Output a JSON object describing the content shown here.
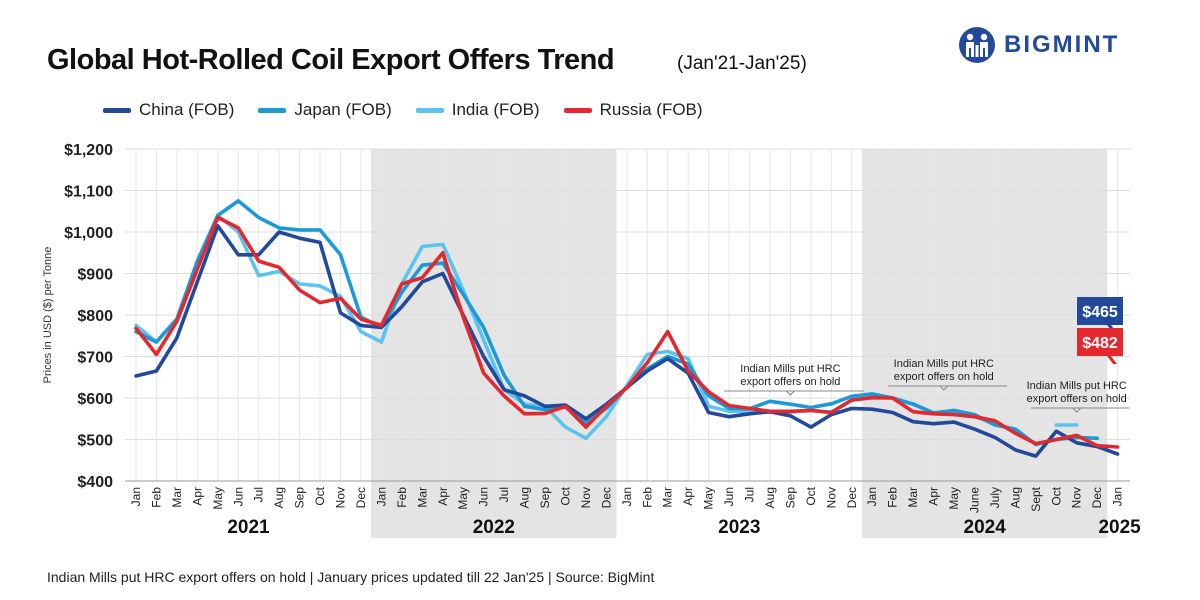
{
  "header": {
    "title": "Global Hot-Rolled Coil Export Offers Trend",
    "subtitle": "(Jan'21-Jan'25)",
    "brand": "BIGMINT"
  },
  "footer": {
    "note": "Indian Mills put HRC export offers on hold  |  January prices updated till 22 Jan'25  |  Source: BigMint"
  },
  "colors": {
    "china": "#234a9a",
    "japan": "#1a9ad6",
    "india": "#5cc3ef",
    "russia": "#e5282e",
    "shade": "#e4e4e4"
  },
  "chart_data": {
    "type": "line",
    "title": "Global Hot-Rolled Coil Export Offers Trend",
    "ylabel": "Prices in USD ($) per Tonne",
    "ylim": [
      400,
      1200
    ],
    "yticks": [
      400,
      500,
      600,
      700,
      800,
      900,
      1000,
      1100,
      1200
    ],
    "ytick_labels": [
      "$400",
      "$500",
      "$600",
      "$700",
      "$800",
      "$900",
      "$1,000",
      "$1,100",
      "$1,200"
    ],
    "grid": true,
    "legend_position": "top-left",
    "categories": [
      "Jan",
      "Feb",
      "Mar",
      "Apr",
      "May",
      "Jun",
      "Jul",
      "Aug",
      "Sep",
      "Oct",
      "Nov",
      "Dec",
      "Jan",
      "Feb",
      "Mar",
      "Apr",
      "May",
      "Jun",
      "Jul",
      "Aug",
      "Sep",
      "Oct",
      "Nov",
      "Dec",
      "Jan",
      "Feb",
      "Mar",
      "Apr",
      "May",
      "Jun",
      "Jul",
      "Aug",
      "Sep",
      "Oct",
      "Nov",
      "Dec",
      "Jan",
      "Feb",
      "Mar",
      "Apr",
      "May",
      "June",
      "July",
      "Aug",
      "Sept",
      "Oct",
      "Nov",
      "Dec",
      "Jan"
    ],
    "years": [
      {
        "label": "2021",
        "start": 0,
        "end": 11,
        "shaded": false
      },
      {
        "label": "2022",
        "start": 12,
        "end": 23,
        "shaded": true
      },
      {
        "label": "2023",
        "start": 24,
        "end": 35,
        "shaded": false
      },
      {
        "label": "2024",
        "start": 36,
        "end": 47,
        "shaded": true
      },
      {
        "label": "2025",
        "start": 48,
        "end": 48,
        "shaded": false
      }
    ],
    "series": [
      {
        "name": "China (FOB)",
        "key": "china",
        "values": [
          653,
          665,
          745,
          880,
          1015,
          945,
          945,
          1000,
          985,
          975,
          805,
          775,
          770,
          820,
          880,
          900,
          800,
          700,
          620,
          605,
          580,
          583,
          550,
          585,
          625,
          665,
          695,
          660,
          565,
          555,
          562,
          567,
          557,
          530,
          560,
          575,
          573,
          565,
          543,
          538,
          542,
          525,
          505,
          475,
          460,
          520,
          492,
          483,
          465
        ]
      },
      {
        "name": "Japan (FOB)",
        "key": "japan",
        "values": [
          760,
          735,
          790,
          930,
          1040,
          1075,
          1035,
          1010,
          1005,
          1005,
          945,
          795,
          770,
          855,
          920,
          925,
          850,
          770,
          655,
          580,
          572,
          578,
          540,
          575,
          625,
          670,
          700,
          682,
          605,
          575,
          574,
          592,
          585,
          577,
          586,
          604,
          610,
          600,
          585,
          564,
          570,
          560,
          535,
          525,
          488,
          500,
          505,
          503,
          null
        ]
      },
      {
        "name": "India (FOB)",
        "key": "india",
        "values": [
          775,
          735,
          790,
          925,
          1040,
          1000,
          895,
          905,
          875,
          870,
          845,
          760,
          735,
          875,
          965,
          970,
          860,
          740,
          620,
          585,
          580,
          530,
          503,
          555,
          630,
          705,
          712,
          695,
          580,
          568,
          568,
          566,
          566,
          570,
          566,
          595,
          600,
          600,
          586,
          564,
          562,
          555,
          538,
          522,
          null,
          535,
          535,
          null,
          null
        ]
      },
      {
        "name": "Russia (FOB)",
        "key": "russia",
        "values": [
          768,
          705,
          785,
          910,
          1035,
          1010,
          930,
          915,
          860,
          830,
          840,
          790,
          775,
          875,
          890,
          950,
          795,
          660,
          605,
          562,
          563,
          580,
          530,
          580,
          625,
          685,
          760,
          665,
          615,
          582,
          575,
          568,
          568,
          570,
          565,
          595,
          601,
          600,
          567,
          562,
          560,
          555,
          545,
          515,
          490,
          500,
          510,
          485,
          482
        ]
      }
    ],
    "callouts": [
      {
        "series": "china",
        "label": "$465",
        "value": 465
      },
      {
        "series": "russia",
        "label": "$482",
        "value": 482
      }
    ],
    "annotations": [
      {
        "text_line1": "Indian Mills put HRC",
        "text_line2": "export offers on hold",
        "from_index": 29,
        "to_index": 35
      },
      {
        "text_line1": "Indian Mills put HRC",
        "text_line2": "export offers on hold",
        "from_index": 37,
        "to_index": 42
      },
      {
        "text_line1": "Indian Mills put HRC",
        "text_line2": "export offers on hold",
        "from_index": 44,
        "to_index": 48
      }
    ]
  }
}
